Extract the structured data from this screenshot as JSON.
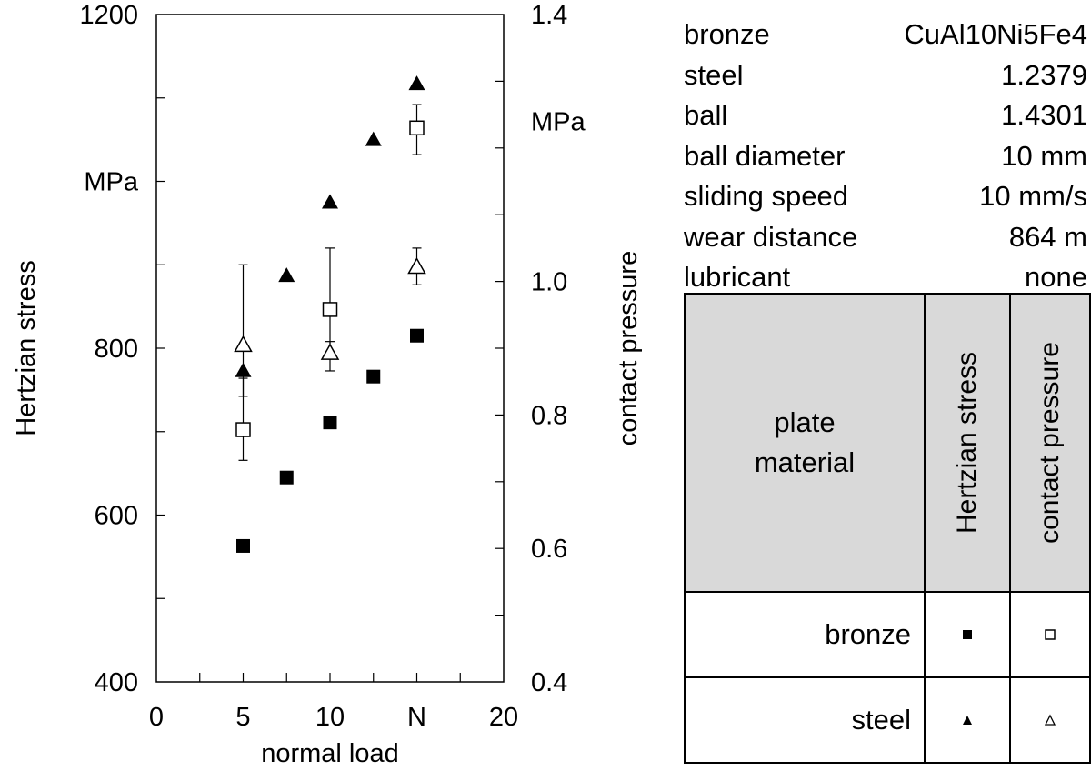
{
  "chart_data": {
    "type": "scatter",
    "xlabel": "normal load",
    "x_unit_label": "N",
    "xlim": [
      0,
      20
    ],
    "x_ticks": [
      "0",
      "5",
      "10",
      "N",
      "20"
    ],
    "left_axis": {
      "label": "Hertzian stress",
      "unit": "MPa",
      "ylim": [
        400,
        1200
      ],
      "ticks": [
        "400",
        "600",
        "800",
        "1200"
      ]
    },
    "right_axis": {
      "label": "contact pressure",
      "unit": "MPa",
      "ylim": [
        0.4,
        1.4
      ],
      "ticks": [
        "0.4",
        "0.6",
        "0.8",
        "1.0",
        "1.4"
      ]
    },
    "series": [
      {
        "key": "bronze_hertz",
        "axis": "left",
        "marker": "filled-square",
        "points": [
          {
            "x": 5,
            "y": 563
          },
          {
            "x": 7.5,
            "y": 645
          },
          {
            "x": 10,
            "y": 711
          },
          {
            "x": 12.5,
            "y": 766
          },
          {
            "x": 15,
            "y": 815
          }
        ]
      },
      {
        "key": "steel_hertz",
        "axis": "left",
        "marker": "filled-triangle",
        "points": [
          {
            "x": 5,
            "y": 773
          },
          {
            "x": 7.5,
            "y": 887
          },
          {
            "x": 10,
            "y": 975
          },
          {
            "x": 12.5,
            "y": 1050
          },
          {
            "x": 15,
            "y": 1117
          }
        ]
      },
      {
        "key": "bronze_pressure",
        "axis": "right",
        "marker": "open-square",
        "points": [
          {
            "x": 5,
            "y": 0.778,
            "err": [
              0.732,
              0.855
            ]
          },
          {
            "x": 10,
            "y": 0.958,
            "err": [
              0.893,
              1.05
            ]
          },
          {
            "x": 15,
            "y": 1.23,
            "err": [
              1.19,
              1.265
            ]
          }
        ]
      },
      {
        "key": "steel_pressure",
        "axis": "right",
        "marker": "open-triangle",
        "points": [
          {
            "x": 5,
            "y": 0.905,
            "err": [
              0.828,
              1.025
            ]
          },
          {
            "x": 10,
            "y": 0.893,
            "err": [
              0.866,
              0.91
            ]
          },
          {
            "x": 15,
            "y": 1.022,
            "err": [
              0.995,
              1.05
            ]
          }
        ]
      }
    ]
  },
  "parameters": [
    {
      "label": "bronze",
      "value": "CuAl10Ni5Fe4"
    },
    {
      "label": "steel",
      "value": "1.2379"
    },
    {
      "label": "ball",
      "value": "1.4301"
    },
    {
      "label": "ball diameter",
      "value": "10 mm"
    },
    {
      "label": "sliding speed",
      "value": "10 mm/s"
    },
    {
      "label": "wear distance",
      "value": "864 m"
    },
    {
      "label": "lubricant",
      "value": "none"
    }
  ],
  "legend_table": {
    "header_plate_line1": "plate",
    "header_plate_line2": "material",
    "header_col2": "Hertzian stress",
    "header_col3": "contact pressure",
    "rows": [
      {
        "label": "bronze",
        "col2_marker": "filled-square",
        "col3_marker": "open-square"
      },
      {
        "label": "steel",
        "col2_marker": "filled-triangle",
        "col3_marker": "open-triangle"
      }
    ]
  }
}
